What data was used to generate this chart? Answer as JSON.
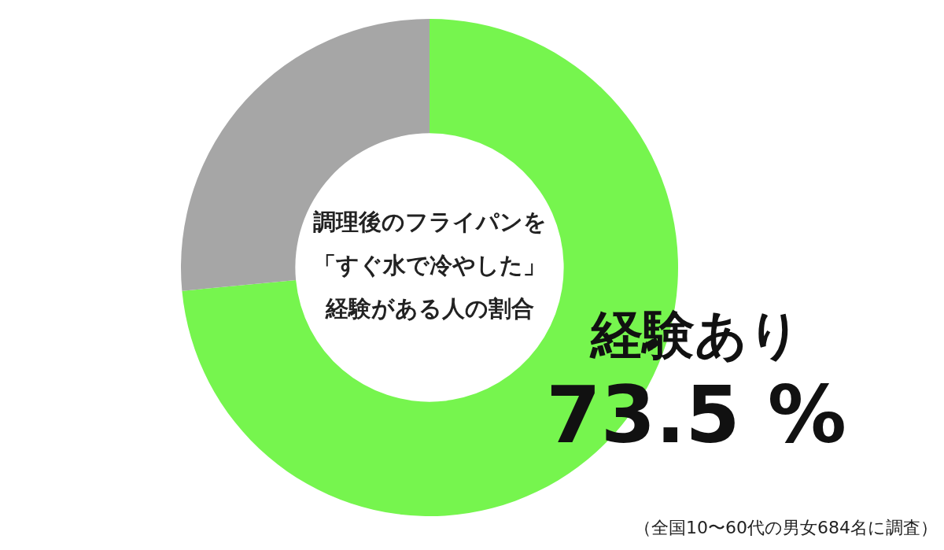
{
  "chart_data": {
    "type": "donut",
    "title": "調理後のフライパンを「すぐ水で冷やした」経験がある人の割合",
    "categories": [
      "経験あり",
      null
    ],
    "values": [
      73.5,
      26.5
    ],
    "colors": [
      "#76f54e",
      "#a6a6a6"
    ],
    "value_labels": [
      "73.5 %",
      null
    ],
    "annotations": [
      "（全国10〜60代の男女684名に調査）"
    ]
  }
}
